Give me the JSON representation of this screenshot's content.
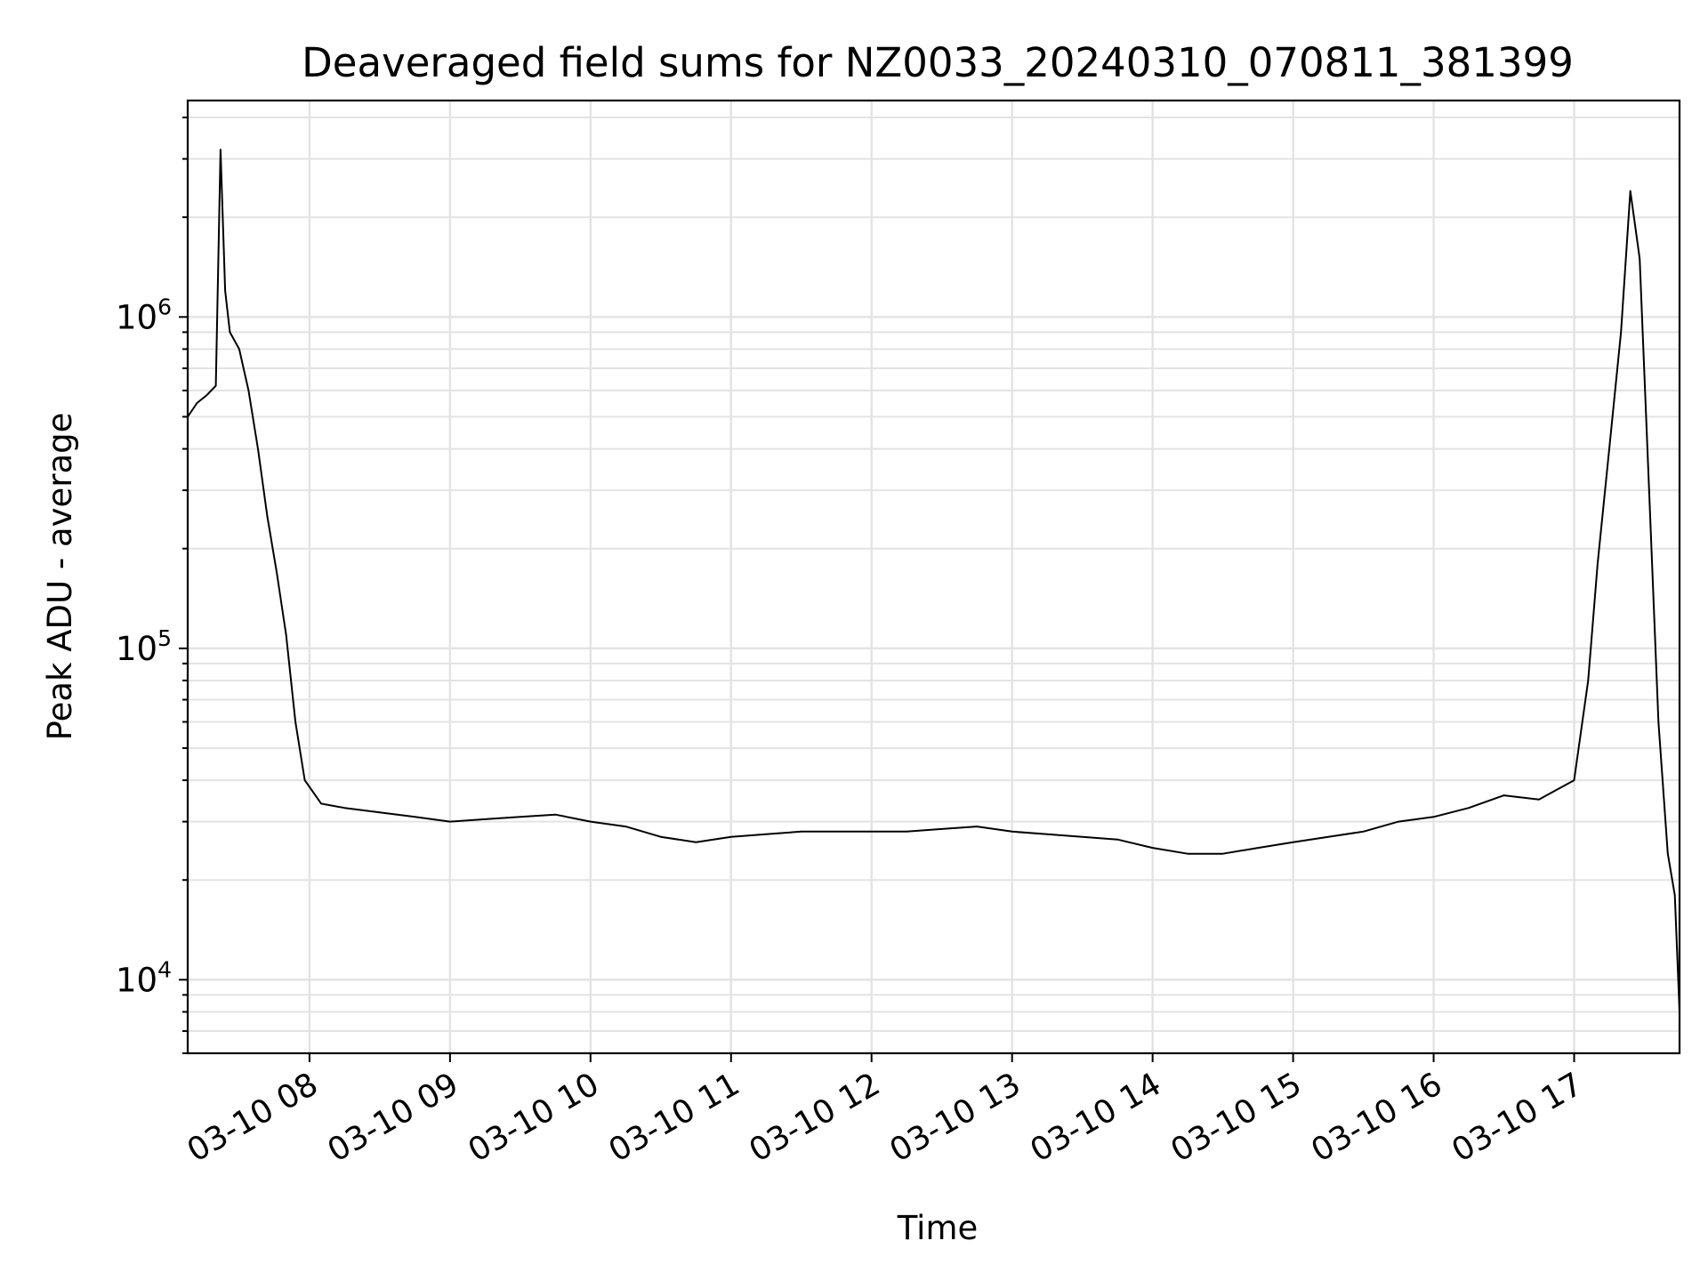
{
  "chart_data": {
    "type": "line",
    "title": "Deaveraged field sums for NZ0033_20240310_070811_381399",
    "xlabel": "Time",
    "ylabel": "Peak ADU - average",
    "y_scale": "log",
    "ylim": [
      6000,
      4500000
    ],
    "xlim": [
      "2024-03-10 07:08",
      "2024-03-10 17:45"
    ],
    "x_ticks": [
      {
        "label": "03-10 08",
        "value": "2024-03-10 08:00"
      },
      {
        "label": "03-10 09",
        "value": "2024-03-10 09:00"
      },
      {
        "label": "03-10 10",
        "value": "2024-03-10 10:00"
      },
      {
        "label": "03-10 11",
        "value": "2024-03-10 11:00"
      },
      {
        "label": "03-10 12",
        "value": "2024-03-10 12:00"
      },
      {
        "label": "03-10 13",
        "value": "2024-03-10 13:00"
      },
      {
        "label": "03-10 14",
        "value": "2024-03-10 14:00"
      },
      {
        "label": "03-10 15",
        "value": "2024-03-10 15:00"
      },
      {
        "label": "03-10 16",
        "value": "2024-03-10 16:00"
      },
      {
        "label": "03-10 17",
        "value": "2024-03-10 17:00"
      }
    ],
    "y_ticks": [
      {
        "base": "10",
        "exp": "4",
        "value": 10000
      },
      {
        "base": "10",
        "exp": "5",
        "value": 100000
      },
      {
        "base": "10",
        "exp": "6",
        "value": 1000000
      }
    ],
    "grid": true,
    "line_color": "#000000",
    "grid_color": "#e3e3e3",
    "series": [
      {
        "x": [
          "2024-03-10 07:08",
          "2024-03-10 07:12",
          "2024-03-10 07:16",
          "2024-03-10 07:20",
          "2024-03-10 07:22",
          "2024-03-10 07:24",
          "2024-03-10 07:26",
          "2024-03-10 07:30",
          "2024-03-10 07:34",
          "2024-03-10 07:38",
          "2024-03-10 07:42",
          "2024-03-10 07:46",
          "2024-03-10 07:50",
          "2024-03-10 07:54",
          "2024-03-10 07:58",
          "2024-03-10 08:05",
          "2024-03-10 08:15",
          "2024-03-10 08:30",
          "2024-03-10 08:45",
          "2024-03-10 09:00",
          "2024-03-10 09:15",
          "2024-03-10 09:30",
          "2024-03-10 09:45",
          "2024-03-10 10:00",
          "2024-03-10 10:15",
          "2024-03-10 10:30",
          "2024-03-10 10:45",
          "2024-03-10 11:00",
          "2024-03-10 11:15",
          "2024-03-10 11:30",
          "2024-03-10 11:45",
          "2024-03-10 12:00",
          "2024-03-10 12:15",
          "2024-03-10 12:30",
          "2024-03-10 12:45",
          "2024-03-10 13:00",
          "2024-03-10 13:15",
          "2024-03-10 13:30",
          "2024-03-10 13:45",
          "2024-03-10 14:00",
          "2024-03-10 14:15",
          "2024-03-10 14:30",
          "2024-03-10 14:45",
          "2024-03-10 15:00",
          "2024-03-10 15:15",
          "2024-03-10 15:30",
          "2024-03-10 15:45",
          "2024-03-10 16:00",
          "2024-03-10 16:15",
          "2024-03-10 16:30",
          "2024-03-10 16:45",
          "2024-03-10 17:00",
          "2024-03-10 17:06",
          "2024-03-10 17:10",
          "2024-03-10 17:15",
          "2024-03-10 17:20",
          "2024-03-10 17:24",
          "2024-03-10 17:28",
          "2024-03-10 17:32",
          "2024-03-10 17:36",
          "2024-03-10 17:40",
          "2024-03-10 17:43",
          "2024-03-10 17:45"
        ],
        "y": [
          500000,
          550000,
          580000,
          620000,
          3200000,
          1200000,
          900000,
          800000,
          600000,
          400000,
          250000,
          170000,
          110000,
          60000,
          40000,
          34000,
          33000,
          32000,
          31000,
          30000,
          30500,
          31000,
          31500,
          30000,
          29000,
          27000,
          26000,
          27000,
          27500,
          28000,
          28000,
          28000,
          28000,
          28500,
          29000,
          28000,
          27500,
          27000,
          26500,
          25000,
          24000,
          24000,
          25000,
          26000,
          27000,
          28000,
          30000,
          31000,
          33000,
          36000,
          35000,
          40000,
          80000,
          180000,
          400000,
          900000,
          2400000,
          1500000,
          300000,
          60000,
          24000,
          18000,
          8000
        ]
      }
    ]
  }
}
